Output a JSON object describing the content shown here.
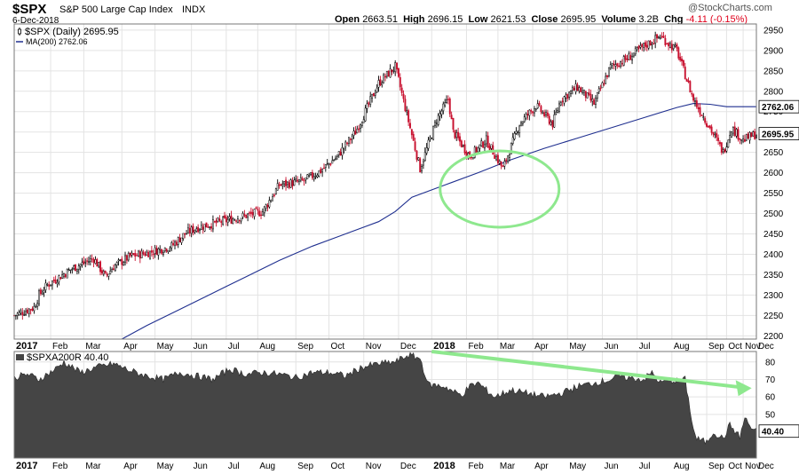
{
  "header": {
    "symbol": "$SPX",
    "name": "S&P 500 Large Cap Index",
    "exchange": "INDX",
    "date": "6-Dec-2018",
    "watermark": "@StockCharts.com",
    "stats": [
      {
        "label": "Open",
        "value": "2663.51"
      },
      {
        "label": "High",
        "value": "2696.15"
      },
      {
        "label": "Low",
        "value": "2621.53"
      },
      {
        "label": "Close",
        "value": "2695.95"
      },
      {
        "label": "Volume",
        "value": "3.2B"
      },
      {
        "label": "Chg",
        "value": "-4.11 (-0.15%)"
      }
    ],
    "change_color": "#e0001b"
  },
  "colors": {
    "up_candle": "#000000",
    "down_candle": "#c8102e",
    "ma_line": "#1f2f8f",
    "area_fill": "#454545",
    "annotation": "#8ee88e",
    "grid": "#e3e3e3"
  },
  "chart_data": [
    {
      "type": "candlestick",
      "legend": [
        {
          "label": "$SPX (Daily) 2695.95",
          "icon": "candle-icon"
        },
        {
          "label": "MA(200) 2762.06",
          "icon": "line-icon"
        }
      ],
      "yticks": [
        2200,
        2250,
        2300,
        2350,
        2400,
        2450,
        2500,
        2550,
        2600,
        2650,
        2700,
        2750,
        2800,
        2850,
        2900,
        2950
      ],
      "ylim": [
        2192,
        2965
      ],
      "last_price_label": "2695.95",
      "ma_price_label": "2762.06",
      "price_series": {
        "name": "$SPX (Daily)",
        "x": [
          0,
          12,
          15,
          20,
          35,
          48,
          55,
          60,
          70,
          82,
          95,
          103,
          110,
          120,
          135,
          150,
          160,
          175,
          185,
          195,
          206,
          212,
          220,
          230,
          245,
          255,
          262,
          265,
          275,
          285,
          295,
          305,
          315,
          325,
          330,
          340,
          350,
          360,
          370,
          380,
          390,
          400,
          410,
          420,
          428,
          433,
          440,
          448
        ],
        "y": [
          2250,
          2270,
          2300,
          2325,
          2365,
          2390,
          2345,
          2370,
          2395,
          2405,
          2420,
          2450,
          2465,
          2475,
          2490,
          2505,
          2570,
          2580,
          2605,
          2640,
          2700,
          2750,
          2820,
          2860,
          2610,
          2730,
          2780,
          2700,
          2640,
          2680,
          2610,
          2720,
          2765,
          2720,
          2780,
          2810,
          2770,
          2860,
          2880,
          2910,
          2935,
          2900,
          2780,
          2710,
          2650,
          2710,
          2680,
          2695.95
        ]
      },
      "ma200_series": {
        "name": "MA(200)",
        "x": [
          65,
          80,
          100,
          120,
          140,
          160,
          180,
          200,
          220,
          230,
          240,
          260,
          280,
          300,
          320,
          340,
          360,
          380,
          400,
          410,
          420,
          430,
          448
        ],
        "y": [
          2192,
          2225,
          2265,
          2305,
          2345,
          2385,
          2420,
          2450,
          2480,
          2505,
          2540,
          2570,
          2600,
          2632,
          2660,
          2685,
          2710,
          2735,
          2760,
          2770,
          2768,
          2762,
          2762.06
        ]
      }
    },
    {
      "type": "area",
      "legend": [
        {
          "label": "$SPXA200R 40.40",
          "icon": "area-icon"
        }
      ],
      "yticks": [
        50,
        60,
        70,
        80
      ],
      "ylim": [
        25,
        86
      ],
      "last_value_label": "40.40",
      "series": {
        "name": "$SPXA200R",
        "x": [
          0,
          8,
          15,
          25,
          30,
          40,
          50,
          60,
          70,
          80,
          90,
          100,
          110,
          120,
          130,
          140,
          150,
          160,
          170,
          180,
          190,
          200,
          210,
          220,
          230,
          238,
          245,
          250,
          260,
          265,
          270,
          275,
          280,
          290,
          300,
          310,
          320,
          330,
          340,
          350,
          360,
          365,
          370,
          380,
          385,
          390,
          395,
          400,
          405,
          410,
          412,
          418,
          422,
          428,
          432,
          438,
          441,
          445,
          448
        ],
        "y": [
          71,
          73,
          70,
          76,
          80,
          74,
          77,
          79,
          75,
          72,
          70,
          74,
          72,
          70,
          76,
          73,
          74,
          73,
          71,
          74,
          74,
          72,
          77,
          79,
          80,
          84,
          82,
          67,
          66,
          63,
          61,
          66,
          68,
          60,
          64,
          62,
          60,
          62,
          66,
          68,
          70,
          72,
          71,
          70,
          74,
          68,
          70,
          69,
          70,
          41,
          36,
          34,
          40,
          36,
          44,
          37,
          48,
          42,
          40.4
        ]
      }
    }
  ],
  "x_axis": {
    "labels": [
      {
        "x": 0,
        "label": "2017",
        "bold": true
      },
      {
        "x": 22,
        "label": "Feb"
      },
      {
        "x": 42,
        "label": "Mar"
      },
      {
        "x": 65,
        "label": "Apr"
      },
      {
        "x": 85,
        "label": "May"
      },
      {
        "x": 107,
        "label": "Jun"
      },
      {
        "x": 128,
        "label": "Jul"
      },
      {
        "x": 147,
        "label": "Aug"
      },
      {
        "x": 170,
        "label": "Sep"
      },
      {
        "x": 190,
        "label": "Oct"
      },
      {
        "x": 211,
        "label": "Nov"
      },
      {
        "x": 232,
        "label": "Dec"
      },
      {
        "x": 252,
        "label": "2018",
        "bold": true
      },
      {
        "x": 273,
        "label": "Feb"
      },
      {
        "x": 292,
        "label": "Mar"
      },
      {
        "x": 313,
        "label": "Apr"
      },
      {
        "x": 334,
        "label": "May"
      },
      {
        "x": 355,
        "label": "Jun"
      },
      {
        "x": 376,
        "label": "Jul"
      },
      {
        "x": 397,
        "label": "Aug"
      },
      {
        "x": 418,
        "label": "Sep"
      },
      {
        "x": 430,
        "label": "Oct"
      },
      {
        "x": 440,
        "label": "Nov"
      },
      {
        "x": 448,
        "label": "Dec"
      }
    ]
  }
}
